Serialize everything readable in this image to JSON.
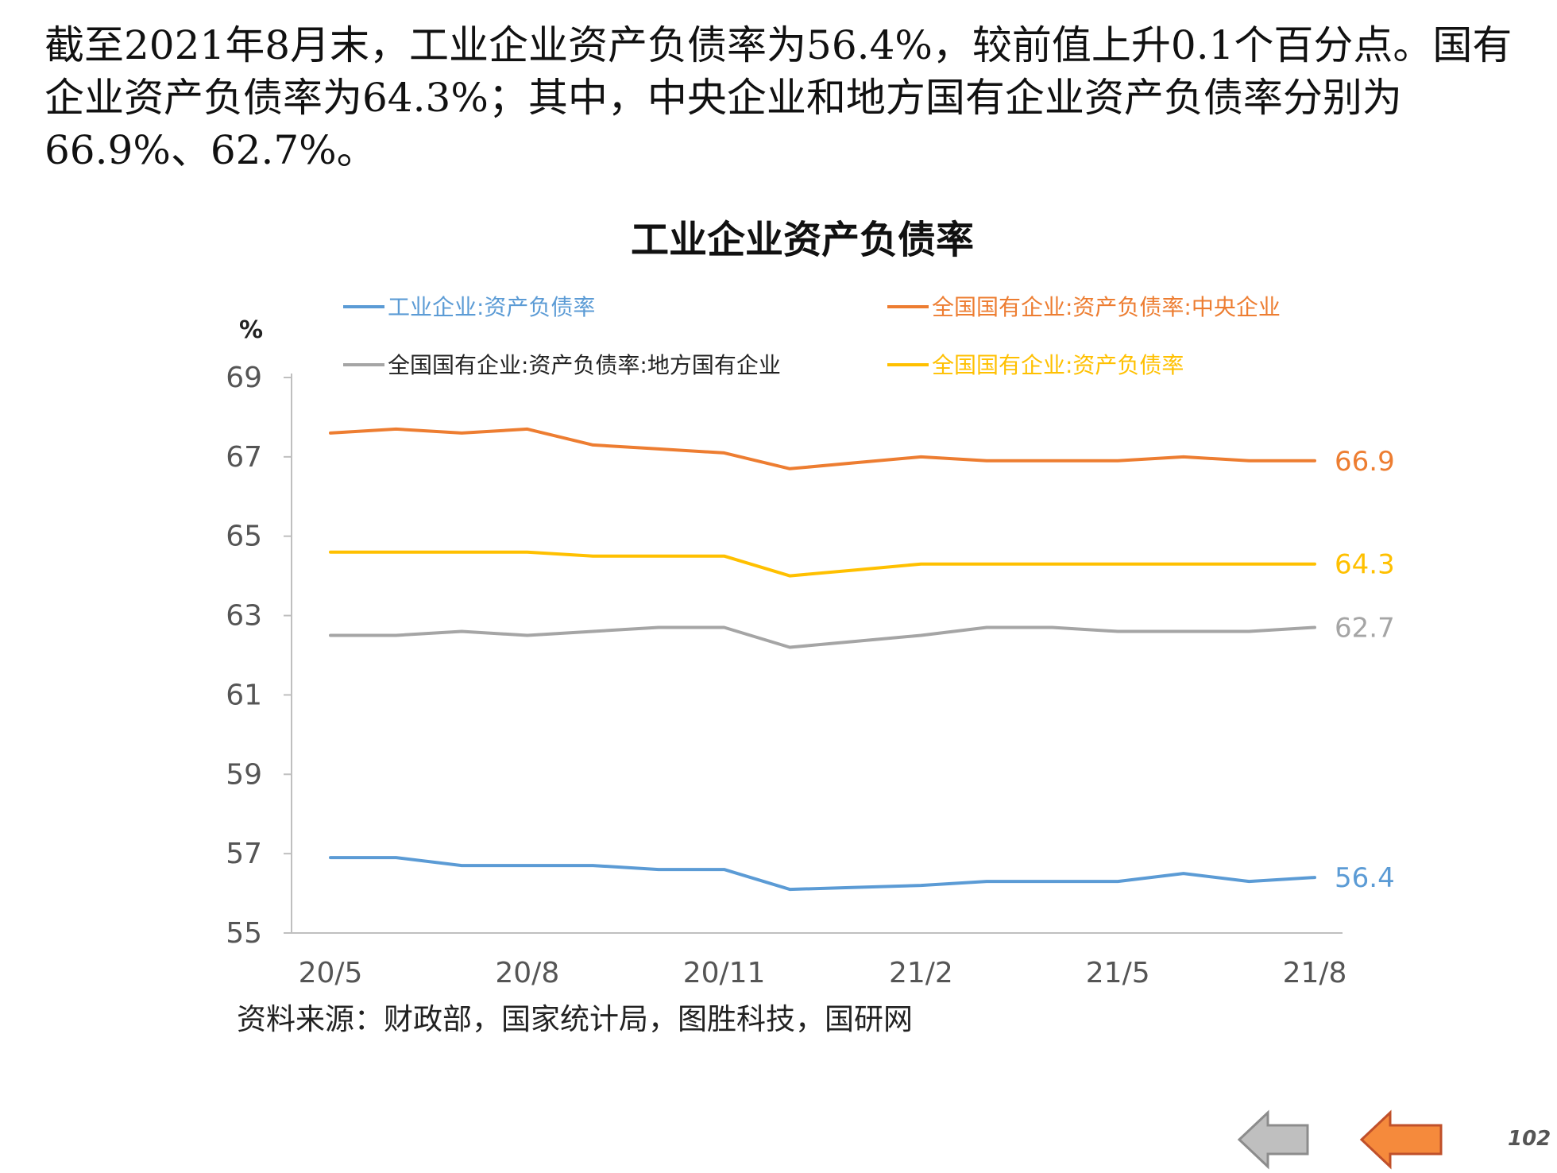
{
  "intro_text": "截至2021年8月末，工业企业资产负债率为56.4%，较前值上升0.1个百分点。国有企业资产负债率为64.3%；其中，中央企业和地方国有企业资产负债率分别为66.9%、62.7%。",
  "source_text": "资料来源：财政部，国家统计局，图胜科技，国研网",
  "page_number": "102",
  "nav": {
    "back_icon": "arrow-left-gray-icon",
    "next_icon": "arrow-left-orange-icon"
  },
  "chart_data": {
    "type": "line",
    "title": "工业企业资产负债率",
    "ylabel": "%",
    "ylim": [
      55,
      69
    ],
    "yticks": [
      69,
      67,
      65,
      63,
      61,
      59,
      57,
      55
    ],
    "x": [
      "20/5",
      "20/6",
      "20/7",
      "20/8",
      "20/9",
      "20/10",
      "20/11",
      "20/12",
      "21/1",
      "21/2",
      "21/3",
      "21/4",
      "21/5",
      "21/6",
      "21/7",
      "21/8"
    ],
    "xtick_labels": [
      "20/5",
      "20/8",
      "20/11",
      "21/2",
      "21/5",
      "21/8"
    ],
    "grid": false,
    "legend_position": "top",
    "series": [
      {
        "name": "工业企业:资产负债率",
        "color": "#5B9BD5",
        "values": [
          56.9,
          56.9,
          56.7,
          56.7,
          56.7,
          56.6,
          56.6,
          56.1,
          56.15,
          56.2,
          56.3,
          56.3,
          56.3,
          56.5,
          56.3,
          56.4
        ],
        "end_label": "56.4"
      },
      {
        "name": "全国国有企业:资产负债率:中央企业",
        "color": "#ED7D31",
        "values": [
          67.6,
          67.7,
          67.6,
          67.7,
          67.3,
          67.2,
          67.1,
          66.7,
          66.85,
          67.0,
          66.9,
          66.9,
          66.9,
          67.0,
          66.9,
          66.9
        ],
        "end_label": "66.9"
      },
      {
        "name": "全国国有企业:资产负债率:地方国有企业",
        "color": "#A5A5A5",
        "values": [
          62.5,
          62.5,
          62.6,
          62.5,
          62.6,
          62.7,
          62.7,
          62.2,
          62.35,
          62.5,
          62.7,
          62.7,
          62.6,
          62.6,
          62.6,
          62.7
        ],
        "end_label": "62.7"
      },
      {
        "name": "全国国有企业:资产负债率",
        "color": "#FFC000",
        "values": [
          64.6,
          64.6,
          64.6,
          64.6,
          64.5,
          64.5,
          64.5,
          64.0,
          64.15,
          64.3,
          64.3,
          64.3,
          64.3,
          64.3,
          64.3,
          64.3
        ],
        "end_label": "64.3"
      }
    ]
  }
}
